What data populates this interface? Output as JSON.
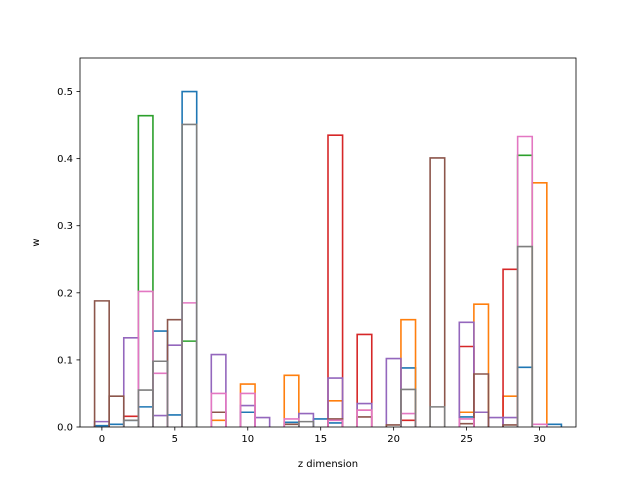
{
  "chart_data": {
    "type": "bar",
    "style": "step-outline",
    "title": "",
    "xlabel": "z dimension",
    "ylabel": "w",
    "xlim": [
      -1.5,
      32.5
    ],
    "ylim": [
      0,
      0.55
    ],
    "xticks": [
      0,
      5,
      10,
      15,
      20,
      25,
      30
    ],
    "yticks": [
      0.0,
      0.1,
      0.2,
      0.3,
      0.4,
      0.5
    ],
    "xtick_labels": [
      "0",
      "5",
      "10",
      "15",
      "20",
      "25",
      "30"
    ],
    "ytick_labels": [
      "0.0",
      "0.1",
      "0.2",
      "0.3",
      "0.4",
      "0.5"
    ],
    "grid": false,
    "legend": "none",
    "series": [
      {
        "color": "#1f77b4",
        "values": [
          [
            0,
            0.002
          ],
          [
            1,
            0.004
          ],
          [
            2,
            0.01
          ],
          [
            3,
            0.03
          ],
          [
            4,
            0.143
          ],
          [
            5,
            0.018
          ],
          [
            6,
            0.5
          ],
          [
            10,
            0.022
          ],
          [
            13,
            0.007
          ],
          [
            15,
            0.012
          ],
          [
            16,
            0.006
          ],
          [
            21,
            0.088
          ],
          [
            25,
            0.015
          ],
          [
            29,
            0.089
          ],
          [
            31,
            0.004
          ]
        ]
      },
      {
        "color": "#ff7f0e",
        "values": [
          [
            8,
            0.01
          ],
          [
            10,
            0.064
          ],
          [
            13,
            0.077
          ],
          [
            16,
            0.039
          ],
          [
            18,
            0.025
          ],
          [
            21,
            0.16
          ],
          [
            25,
            0.022
          ],
          [
            26,
            0.183
          ],
          [
            28,
            0.046
          ],
          [
            30,
            0.364
          ]
        ]
      },
      {
        "color": "#2ca02c",
        "values": [
          [
            3,
            0.464
          ],
          [
            6,
            0.128
          ],
          [
            29,
            0.405
          ]
        ]
      },
      {
        "color": "#d62728",
        "values": [
          [
            2,
            0.016
          ],
          [
            16,
            0.435
          ],
          [
            18,
            0.138
          ],
          [
            21,
            0.01
          ],
          [
            25,
            0.12
          ],
          [
            28,
            0.235
          ]
        ]
      },
      {
        "color": "#9467bd",
        "values": [
          [
            0,
            0.008
          ],
          [
            2,
            0.133
          ],
          [
            4,
            0.017
          ],
          [
            5,
            0.122
          ],
          [
            8,
            0.108
          ],
          [
            10,
            0.032
          ],
          [
            11,
            0.014
          ],
          [
            14,
            0.02
          ],
          [
            16,
            0.073
          ],
          [
            18,
            0.035
          ],
          [
            20,
            0.102
          ],
          [
            25,
            0.156
          ],
          [
            26,
            0.022
          ],
          [
            27,
            0.014
          ],
          [
            28,
            0.014
          ]
        ]
      },
      {
        "color": "#8c564b",
        "values": [
          [
            0,
            0.188
          ],
          [
            1,
            0.046
          ],
          [
            5,
            0.16
          ],
          [
            8,
            0.022
          ],
          [
            13,
            0.004
          ],
          [
            16,
            0.012
          ],
          [
            18,
            0.015
          ],
          [
            20,
            0.003
          ],
          [
            23,
            0.401
          ],
          [
            25,
            0.005
          ],
          [
            26,
            0.079
          ],
          [
            28,
            0.003
          ]
        ]
      },
      {
        "color": "#e377c2",
        "values": [
          [
            3,
            0.202
          ],
          [
            4,
            0.08
          ],
          [
            6,
            0.185
          ],
          [
            8,
            0.05
          ],
          [
            10,
            0.05
          ],
          [
            13,
            0.012
          ],
          [
            16,
            0.01
          ],
          [
            18,
            0.025
          ],
          [
            21,
            0.02
          ],
          [
            25,
            0.012
          ],
          [
            29,
            0.433
          ],
          [
            30,
            0.004
          ]
        ]
      },
      {
        "color": "#7f7f7f",
        "values": [
          [
            2,
            0.01
          ],
          [
            3,
            0.055
          ],
          [
            4,
            0.098
          ],
          [
            6,
            0.451
          ],
          [
            14,
            0.008
          ],
          [
            21,
            0.056
          ],
          [
            23,
            0.03
          ],
          [
            29,
            0.269
          ]
        ]
      }
    ]
  }
}
